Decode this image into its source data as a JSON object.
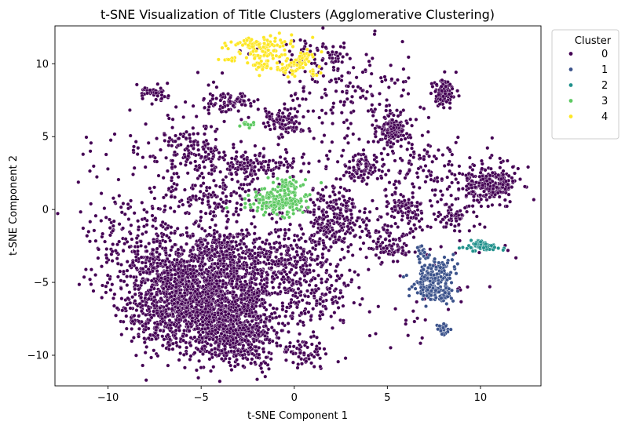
{
  "chart_data": {
    "type": "scatter",
    "title": "t-SNE Visualization of Title Clusters (Agglomerative Clustering)",
    "xlabel": "t-SNE Component 1",
    "ylabel": "t-SNE Component 2",
    "xlim": [
      -12.85,
      13.25
    ],
    "ylim": [
      -12.1,
      12.6
    ],
    "xticks": [
      -10,
      -5,
      0,
      5,
      10
    ],
    "yticks": [
      -10,
      -5,
      0,
      5,
      10
    ],
    "xtick_labels": [
      "−10",
      "−5",
      "0",
      "5",
      "10"
    ],
    "ytick_labels": [
      "−10",
      "−5",
      "0",
      "5",
      "10"
    ],
    "grid": false,
    "legend": {
      "title": "Cluster",
      "placement": "outside-top-right",
      "entries": [
        "0",
        "1",
        "2",
        "3",
        "4"
      ]
    },
    "series": [
      {
        "name": "0",
        "color": "#440154",
        "point_count_estimate": 5200,
        "regions": [
          {
            "center": [
              -4.8,
              -6.6
            ],
            "spread": [
              1.6,
              1.7
            ],
            "n": 1300
          },
          {
            "center": [
              -3.0,
              -8.6
            ],
            "spread": [
              1.0,
              1.2
            ],
            "n": 350
          },
          {
            "center": [
              -6.8,
              -4.3
            ],
            "spread": [
              1.6,
              1.4
            ],
            "n": 350
          },
          {
            "center": [
              -2.2,
              -4.6
            ],
            "spread": [
              1.5,
              1.4
            ],
            "n": 320
          },
          {
            "center": [
              -7.5,
              -7.3
            ],
            "spread": [
              1.0,
              1.1
            ],
            "n": 150
          },
          {
            "center": [
              -4.0,
              -2.7
            ],
            "spread": [
              1.2,
              0.6
            ],
            "n": 180
          },
          {
            "center": [
              10.5,
              1.8
            ],
            "spread": [
              0.7,
              0.6
            ],
            "n": 260
          },
          {
            "center": [
              5.3,
              5.4
            ],
            "spread": [
              0.4,
              0.5
            ],
            "n": 150
          },
          {
            "center": [
              8.0,
              8.0
            ],
            "spread": [
              0.3,
              0.5
            ],
            "n": 90
          },
          {
            "center": [
              -3.5,
              7.3
            ],
            "spread": [
              0.6,
              0.4
            ],
            "n": 80
          },
          {
            "center": [
              -0.5,
              6.0
            ],
            "spread": [
              0.5,
              0.5
            ],
            "n": 80
          },
          {
            "center": [
              -1.8,
              3.2
            ],
            "spread": [
              1.6,
              0.5
            ],
            "n": 140
          },
          {
            "center": [
              3.5,
              3.0
            ],
            "spread": [
              0.5,
              0.5
            ],
            "n": 80
          },
          {
            "center": [
              -4.3,
              0.8
            ],
            "spread": [
              1.5,
              1.0
            ],
            "n": 170
          },
          {
            "center": [
              2.5,
              -1.0
            ],
            "spread": [
              0.9,
              0.7
            ],
            "n": 130
          },
          {
            "center": [
              5.0,
              -2.2
            ],
            "spread": [
              0.6,
              0.7
            ],
            "n": 90
          },
          {
            "center": [
              6.0,
              0.0
            ],
            "spread": [
              0.5,
              0.6
            ],
            "n": 90
          },
          {
            "center": [
              0.4,
              -3.0
            ],
            "spread": [
              1.4,
              1.4
            ],
            "n": 210
          },
          {
            "center": [
              1.0,
              -6.0
            ],
            "spread": [
              1.0,
              1.2
            ],
            "n": 120
          },
          {
            "center": [
              0.4,
              -9.8
            ],
            "spread": [
              0.6,
              0.5
            ],
            "n": 60
          },
          {
            "center": [
              -5.5,
              4.2
            ],
            "spread": [
              1.4,
              1.0
            ],
            "n": 150
          },
          {
            "center": [
              -7.5,
              8.0
            ],
            "spread": [
              0.5,
              0.3
            ],
            "n": 40
          },
          {
            "center": [
              3.0,
              8.0
            ],
            "spread": [
              1.5,
              1.5
            ],
            "n": 120
          },
          {
            "center": [
              6.5,
              2.5
            ],
            "spread": [
              1.4,
              1.1
            ],
            "n": 110
          },
          {
            "center": [
              2.0,
              0.5
            ],
            "spread": [
              0.7,
              0.7
            ],
            "n": 70
          },
          {
            "center": [
              -8.5,
              -1.5
            ],
            "spread": [
              1.4,
              1.3
            ],
            "n": 120
          },
          {
            "center": [
              8.5,
              -0.5
            ],
            "spread": [
              0.6,
              0.6
            ],
            "n": 60
          },
          {
            "center": [
              1.5,
              10.5
            ],
            "spread": [
              1.0,
              0.7
            ],
            "n": 60
          }
        ],
        "background_scatter": {
          "x_range": [
            -11.6,
            12.0
          ],
          "y_range": [
            -10.8,
            11.4
          ],
          "n": 420
        }
      },
      {
        "name": "1",
        "color": "#3b528b",
        "point_count_estimate": 270,
        "regions": [
          {
            "center": [
              7.3,
              -5.0
            ],
            "spread": [
              0.5,
              0.6
            ],
            "n": 140
          },
          {
            "center": [
              7.8,
              -4.0
            ],
            "spread": [
              0.4,
              0.4
            ],
            "n": 45
          },
          {
            "center": [
              8.0,
              -5.8
            ],
            "spread": [
              0.4,
              0.3
            ],
            "n": 40
          },
          {
            "center": [
              8.0,
              -8.2
            ],
            "spread": [
              0.15,
              0.2
            ],
            "n": 25
          },
          {
            "center": [
              6.9,
              -3.0
            ],
            "spread": [
              0.2,
              0.3
            ],
            "n": 20
          }
        ]
      },
      {
        "name": "2",
        "color": "#21918c",
        "point_count_estimate": 65,
        "regions": [
          {
            "center": [
              10.2,
              -2.6
            ],
            "spread": [
              0.45,
              0.12
            ],
            "n": 50
          },
          {
            "center": [
              9.9,
              -2.25
            ],
            "spread": [
              0.2,
              0.08
            ],
            "n": 15
          }
        ]
      },
      {
        "name": "3",
        "color": "#5ec962",
        "point_count_estimate": 230,
        "regions": [
          {
            "center": [
              -0.8,
              0.5
            ],
            "spread": [
              0.85,
              0.4
            ],
            "n": 170
          },
          {
            "center": [
              -0.4,
              1.6
            ],
            "spread": [
              0.6,
              0.3
            ],
            "n": 45
          },
          {
            "center": [
              -2.5,
              5.9
            ],
            "spread": [
              0.25,
              0.2
            ],
            "n": 12
          }
        ]
      },
      {
        "name": "4",
        "color": "#fde725",
        "point_count_estimate": 230,
        "regions": [
          {
            "center": [
              -1.8,
              11.2
            ],
            "spread": [
              0.85,
              0.35
            ],
            "n": 100
          },
          {
            "center": [
              -1.6,
              10.2
            ],
            "spread": [
              0.5,
              0.4
            ],
            "n": 45
          },
          {
            "center": [
              -0.2,
              9.8
            ],
            "spread": [
              0.5,
              0.45
            ],
            "n": 45
          },
          {
            "center": [
              0.5,
              10.4
            ],
            "spread": [
              0.25,
              0.2
            ],
            "n": 20
          },
          {
            "center": [
              -3.5,
              10.3
            ],
            "spread": [
              0.2,
              0.1
            ],
            "n": 10
          },
          {
            "center": [
              1.0,
              9.4
            ],
            "spread": [
              0.3,
              0.2
            ],
            "n": 10
          }
        ]
      }
    ]
  }
}
